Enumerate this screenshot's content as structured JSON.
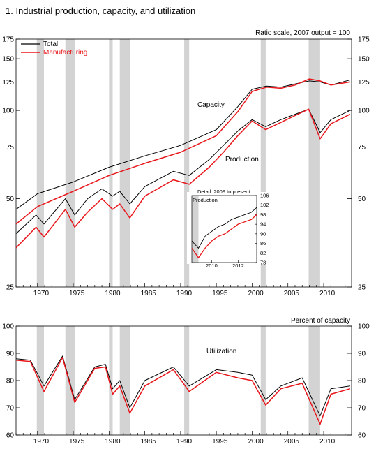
{
  "chart_data": [
    {
      "type": "line",
      "title": "1.  Industrial production, capacity, and utilization",
      "scale_note": "Ratio scale, 2007 output = 100",
      "scale": "log",
      "ylim": [
        25,
        175
      ],
      "xlim": [
        1967,
        2013.9
      ],
      "yticks": [
        25,
        50,
        75,
        100,
        125,
        150,
        175
      ],
      "xticks": [
        1970,
        1975,
        1980,
        1985,
        1990,
        1995,
        2000,
        2005,
        2010
      ],
      "legend": {
        "placement": "top-left",
        "entries": [
          "Total",
          "Manufacturing"
        ]
      },
      "annotations": [
        "Capacity",
        "Production"
      ],
      "recessions": [
        [
          1969.9,
          1970.9
        ],
        [
          1973.9,
          1975.2
        ],
        [
          1980.0,
          1980.5
        ],
        [
          1981.5,
          1982.9
        ],
        [
          1990.5,
          1991.2
        ],
        [
          2001.2,
          2001.9
        ],
        [
          2007.9,
          2009.5
        ]
      ],
      "series": [
        {
          "name": "Total",
          "color": "#000000",
          "group": "Capacity",
          "x": [
            1967,
            1970,
            1975,
            1980,
            1985,
            1990,
            1995,
            1998,
            2000,
            2002,
            2004,
            2006,
            2008,
            2009.5,
            2011,
            2013.7
          ],
          "values": [
            46,
            52,
            57,
            64,
            70,
            76,
            86,
            103,
            118,
            121,
            120,
            123,
            126,
            125,
            122,
            127
          ]
        },
        {
          "name": "Manufacturing",
          "color": "#e8161b",
          "group": "Capacity",
          "x": [
            1967,
            1970,
            1975,
            1980,
            1985,
            1990,
            1995,
            1998,
            2000,
            2002,
            2004,
            2006,
            2008,
            2009.5,
            2011,
            2013.7
          ],
          "values": [
            41,
            47,
            53,
            60,
            66,
            72,
            82,
            99,
            116,
            120,
            119,
            122,
            128,
            126,
            122,
            125
          ]
        },
        {
          "name": "Total",
          "color": "#000000",
          "group": "Production",
          "x": [
            1967,
            1969.8,
            1970.9,
            1973.9,
            1975.2,
            1977,
            1979,
            1980.5,
            1981.5,
            1982.9,
            1985,
            1989,
            1991.2,
            1994,
            1996,
            1998,
            2000,
            2001.9,
            2004,
            2006,
            2007.9,
            2009.5,
            2011,
            2013.7
          ],
          "values": [
            38,
            44,
            41,
            50,
            44,
            50,
            54,
            51,
            53,
            48,
            55,
            62,
            60,
            68,
            76,
            85,
            93,
            88,
            93,
            97,
            101,
            84,
            93,
            100
          ]
        },
        {
          "name": "Manufacturing",
          "color": "#e8161b",
          "group": "Production",
          "x": [
            1967,
            1969.8,
            1970.9,
            1973.9,
            1975.2,
            1977,
            1979,
            1980.5,
            1981.5,
            1982.9,
            1985,
            1989,
            1991.2,
            1994,
            1996,
            1998,
            2000,
            2001.9,
            2004,
            2006,
            2007.9,
            2009.5,
            2011,
            2013.7
          ],
          "values": [
            34,
            40,
            37,
            46,
            40,
            45,
            50,
            46,
            48,
            43,
            51,
            58,
            56,
            64,
            72,
            82,
            92,
            86,
            91,
            96,
            101,
            80,
            90,
            97
          ]
        }
      ],
      "inset": {
        "title": "Detail: 2009 to present",
        "label": "Production",
        "xlim": [
          2009,
          2013.9
        ],
        "ylim": [
          78,
          106
        ],
        "yticks": [
          78,
          82,
          86,
          90,
          94,
          98,
          102,
          106
        ],
        "xticks": [
          2010,
          2012
        ],
        "shade": [
          2009.0,
          2009.5
        ],
        "series": [
          {
            "name": "Total",
            "color": "#000000",
            "x": [
              2009,
              2009.5,
              2010,
              2010.5,
              2011,
              2011.5,
              2012,
              2012.5,
              2013,
              2013.5,
              2013.9
            ],
            "values": [
              87,
              84,
              89,
              91,
              93,
              94,
              96,
              97,
              98,
              99,
              101
            ]
          },
          {
            "name": "Manufacturing",
            "color": "#e8161b",
            "x": [
              2009,
              2009.5,
              2010,
              2010.5,
              2011,
              2011.5,
              2012,
              2012.5,
              2013,
              2013.5,
              2013.9
            ],
            "values": [
              84,
              80,
              84,
              87,
              89,
              90,
              92,
              94,
              95,
              96,
              98
            ]
          }
        ]
      }
    },
    {
      "type": "line",
      "title": "Percent of capacity",
      "ylim": [
        60,
        100
      ],
      "xlim": [
        1967,
        2013.9
      ],
      "yticks": [
        60,
        70,
        80,
        90,
        100
      ],
      "xticks": [
        1970,
        1975,
        1980,
        1985,
        1990,
        1995,
        2000,
        2005,
        2010
      ],
      "annotations": [
        "Utilization"
      ],
      "recessions": [
        [
          1969.9,
          1970.9
        ],
        [
          1973.9,
          1975.2
        ],
        [
          1980.0,
          1980.5
        ],
        [
          1981.5,
          1982.9
        ],
        [
          1990.5,
          1991.2
        ],
        [
          2001.2,
          2001.9
        ],
        [
          2007.9,
          2009.5
        ]
      ],
      "series": [
        {
          "name": "Total",
          "color": "#000000",
          "x": [
            1967,
            1969,
            1970.9,
            1973.5,
            1975.2,
            1978,
            1979.5,
            1980.5,
            1981.5,
            1982.9,
            1985,
            1989,
            1991.2,
            1995,
            1998,
            2000,
            2001.9,
            2004,
            2007,
            2009.5,
            2011,
            2013.7
          ],
          "values": [
            88,
            87.5,
            78,
            89,
            73,
            85,
            86,
            77,
            80,
            70,
            80,
            85,
            78,
            84,
            83,
            82,
            73,
            78,
            81,
            67,
            77,
            78
          ]
        },
        {
          "name": "Manufacturing",
          "color": "#e8161b",
          "x": [
            1967,
            1969,
            1970.9,
            1973.5,
            1975.2,
            1978,
            1979.5,
            1980.5,
            1981.5,
            1982.9,
            1985,
            1989,
            1991.2,
            1995,
            1998,
            2000,
            2001.9,
            2004,
            2007,
            2009.5,
            2011,
            2013.7
          ],
          "values": [
            87.5,
            87,
            76,
            88.5,
            72,
            84.5,
            85,
            75,
            78,
            68,
            78,
            84,
            76,
            83,
            81,
            80,
            71,
            77,
            79,
            64,
            75,
            77
          ]
        }
      ]
    }
  ]
}
